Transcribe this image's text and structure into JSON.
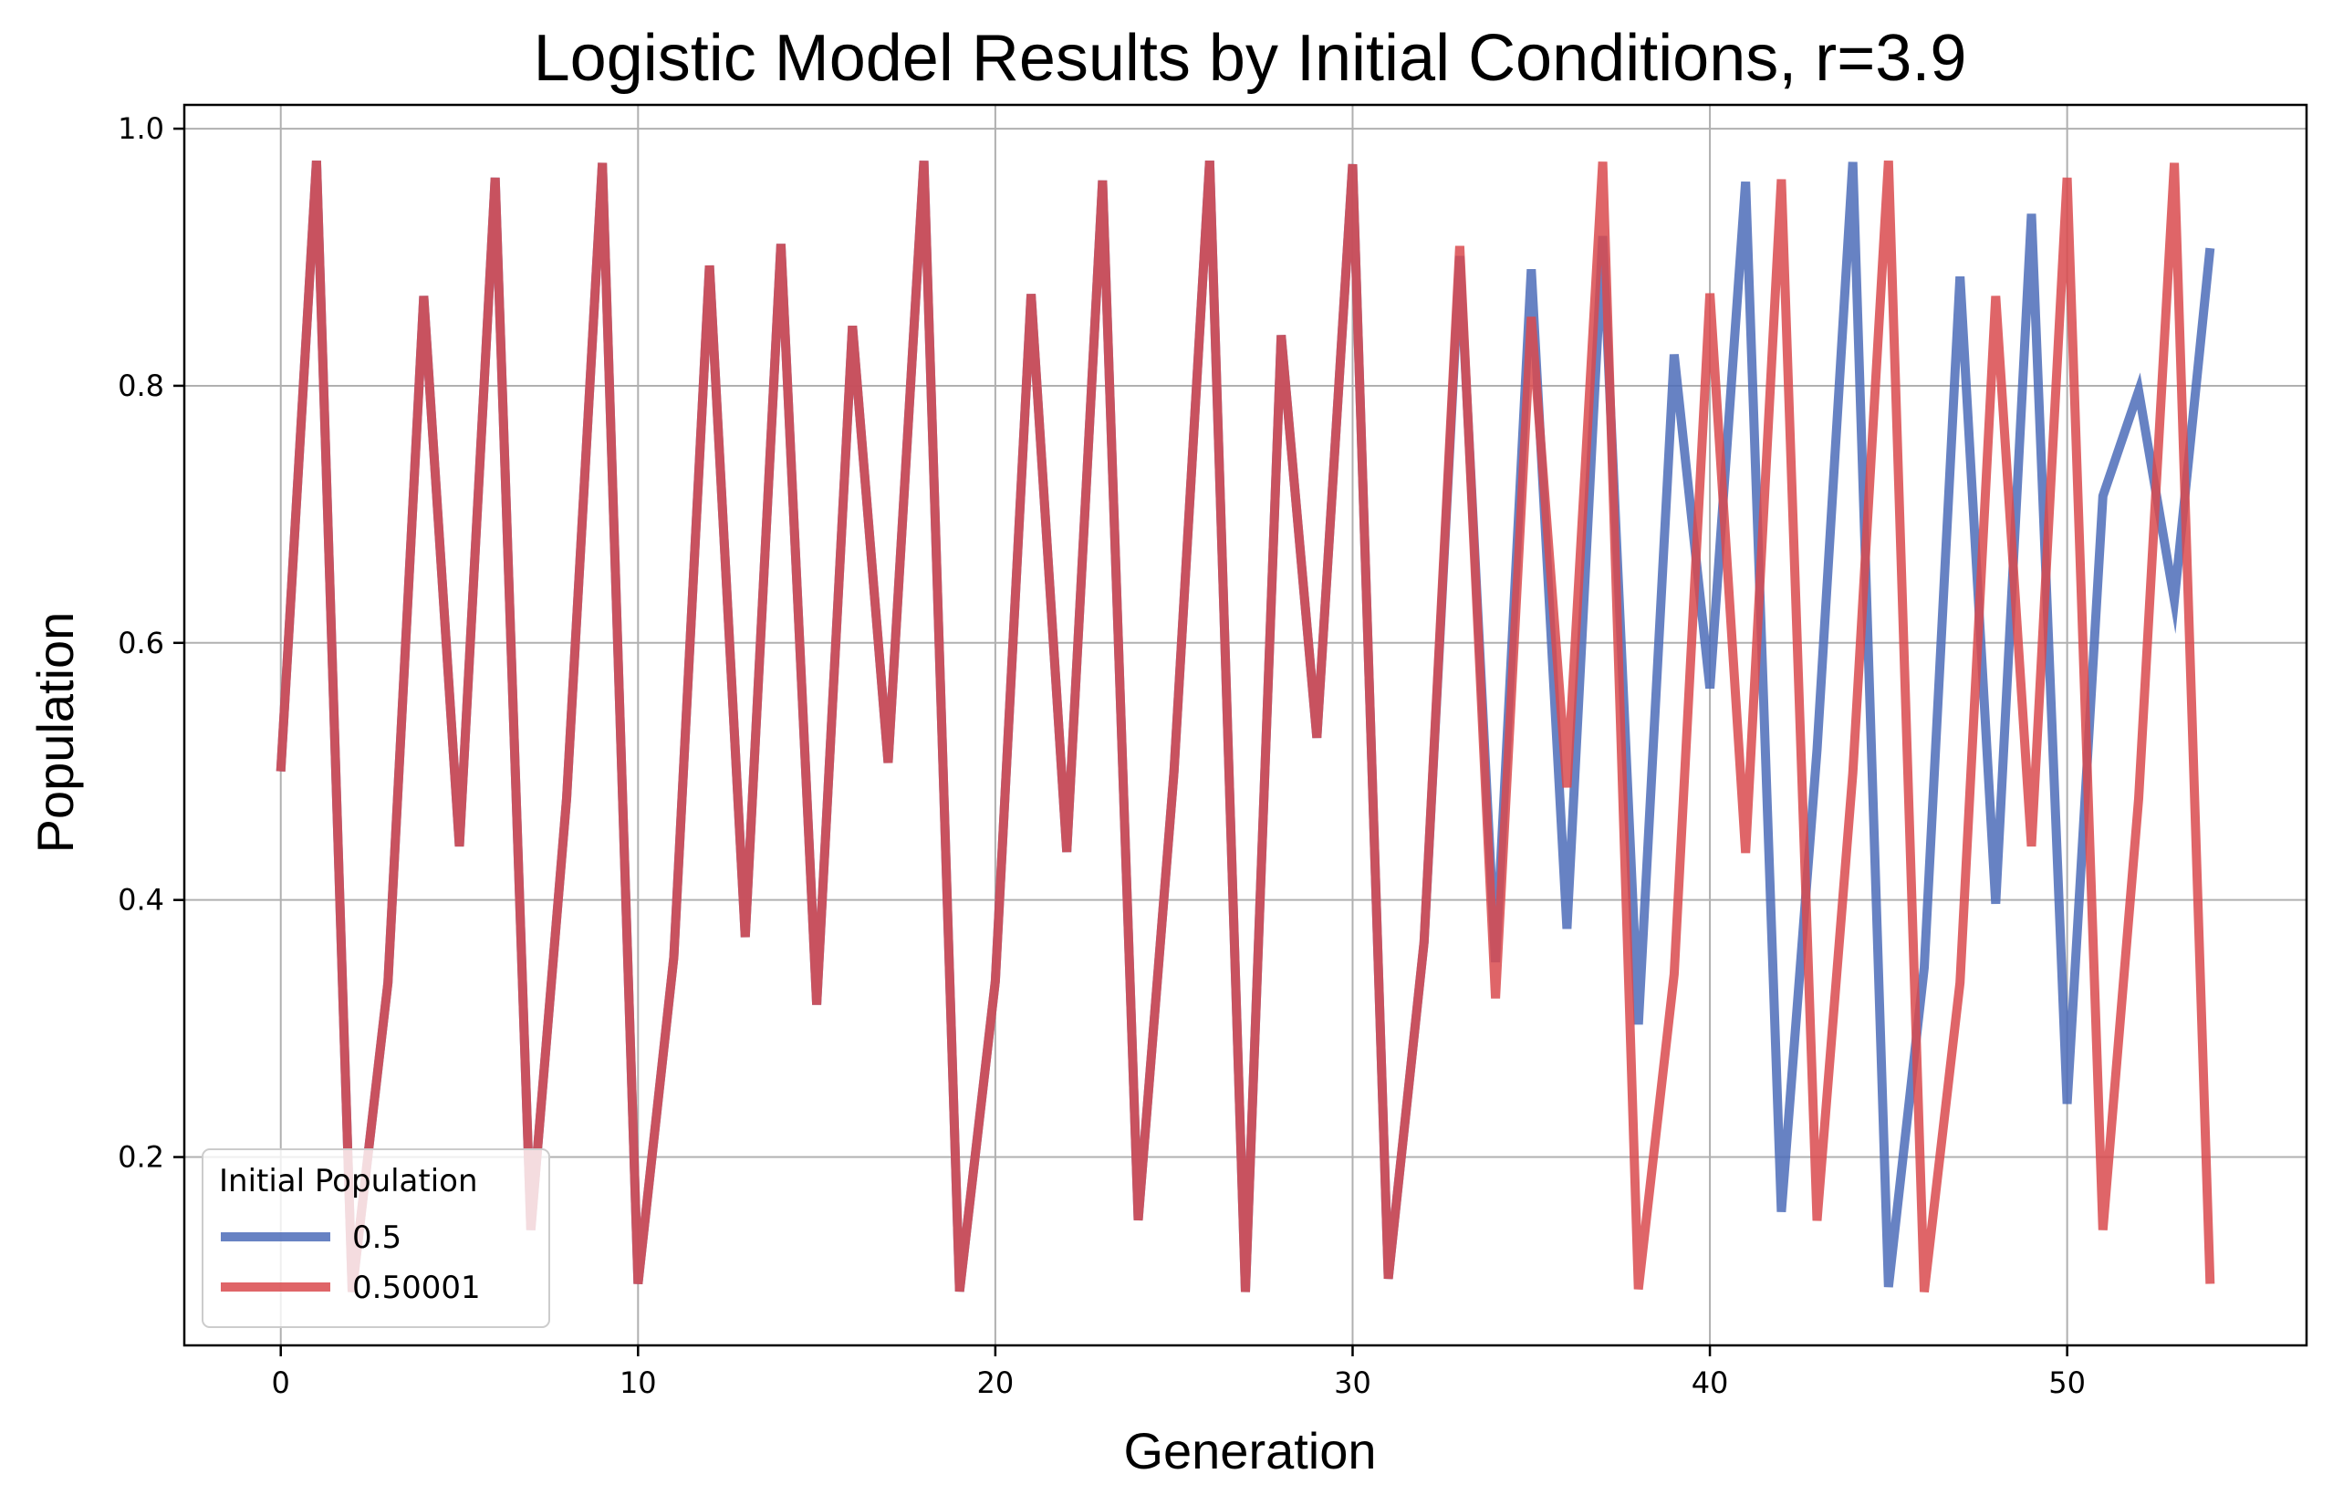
{
  "chart_data": {
    "type": "line",
    "title": "Logistic Model Results by Initial Conditions, r=3.9",
    "xlabel": "Generation",
    "ylabel": "Population",
    "xlim": [
      -2.7,
      56.7
    ],
    "ylim": [
      0.0535,
      1.0185
    ],
    "xticks": [
      0,
      10,
      20,
      30,
      40,
      50
    ],
    "yticks": [
      0.2,
      0.4,
      0.6,
      0.8,
      1.0
    ],
    "xtick_labels": [
      "0",
      "10",
      "20",
      "30",
      "40",
      "50"
    ],
    "ytick_labels": [
      "0.2",
      "0.4",
      "0.6",
      "0.8",
      "1.0"
    ],
    "grid": true,
    "legend_title": "Initial Population",
    "legend_position": "lower-left",
    "x": [
      0,
      1,
      2,
      3,
      4,
      5,
      6,
      7,
      8,
      9,
      10,
      11,
      12,
      13,
      14,
      15,
      16,
      17,
      18,
      19,
      20,
      21,
      22,
      23,
      24,
      25,
      26,
      27,
      28,
      29,
      30,
      31,
      32,
      33,
      34,
      35,
      36,
      37,
      38,
      39,
      40,
      41,
      42,
      43,
      44,
      45,
      46,
      47,
      48,
      49,
      50,
      51,
      52,
      53,
      54
    ],
    "series": [
      {
        "name": "0.5",
        "color": "#4c6cb8",
        "values": [
          0.5,
          0.975,
          0.0951,
          0.3357,
          0.8698,
          0.4418,
          0.9618,
          0.1433,
          0.4789,
          0.9733,
          0.1014,
          0.3554,
          0.8935,
          0.3712,
          0.9103,
          0.3185,
          0.8465,
          0.5068,
          0.9749,
          0.0955,
          0.3369,
          0.8713,
          0.4374,
          0.9597,
          0.1509,
          0.4997,
          0.975,
          0.0951,
          0.8393,
          0.5262,
          0.9723,
          0.1054,
          0.3673,
          0.9009,
          0.3516,
          0.8906,
          0.3776,
          0.9164,
          0.3032,
          0.8243,
          0.5647,
          0.9587,
          0.1574,
          0.5169,
          0.974,
          0.0989,
          0.3475,
          0.8849,
          0.3971,
          0.9337,
          0.2414,
          0.7142,
          0.796,
          0.6333,
          0.907
        ]
      },
      {
        "name": "0.50001",
        "color": "#d94a4e",
        "values": [
          0.50001,
          0.975,
          0.0951,
          0.3357,
          0.8698,
          0.4418,
          0.9618,
          0.1433,
          0.4789,
          0.9733,
          0.1014,
          0.3554,
          0.8935,
          0.3712,
          0.9103,
          0.3185,
          0.8465,
          0.5068,
          0.9749,
          0.0955,
          0.3369,
          0.8713,
          0.4374,
          0.9597,
          0.1509,
          0.4997,
          0.975,
          0.0951,
          0.8393,
          0.5262,
          0.9723,
          0.1054,
          0.3673,
          0.9087,
          0.3235,
          0.8535,
          0.4876,
          0.9742,
          0.0972,
          0.3422,
          0.8718,
          0.4366,
          0.9605,
          0.1506,
          0.4987,
          0.975,
          0.0951,
          0.3357,
          0.8698,
          0.4418,
          0.9618,
          0.1433,
          0.4789,
          0.9733,
          0.1014
        ]
      }
    ]
  }
}
